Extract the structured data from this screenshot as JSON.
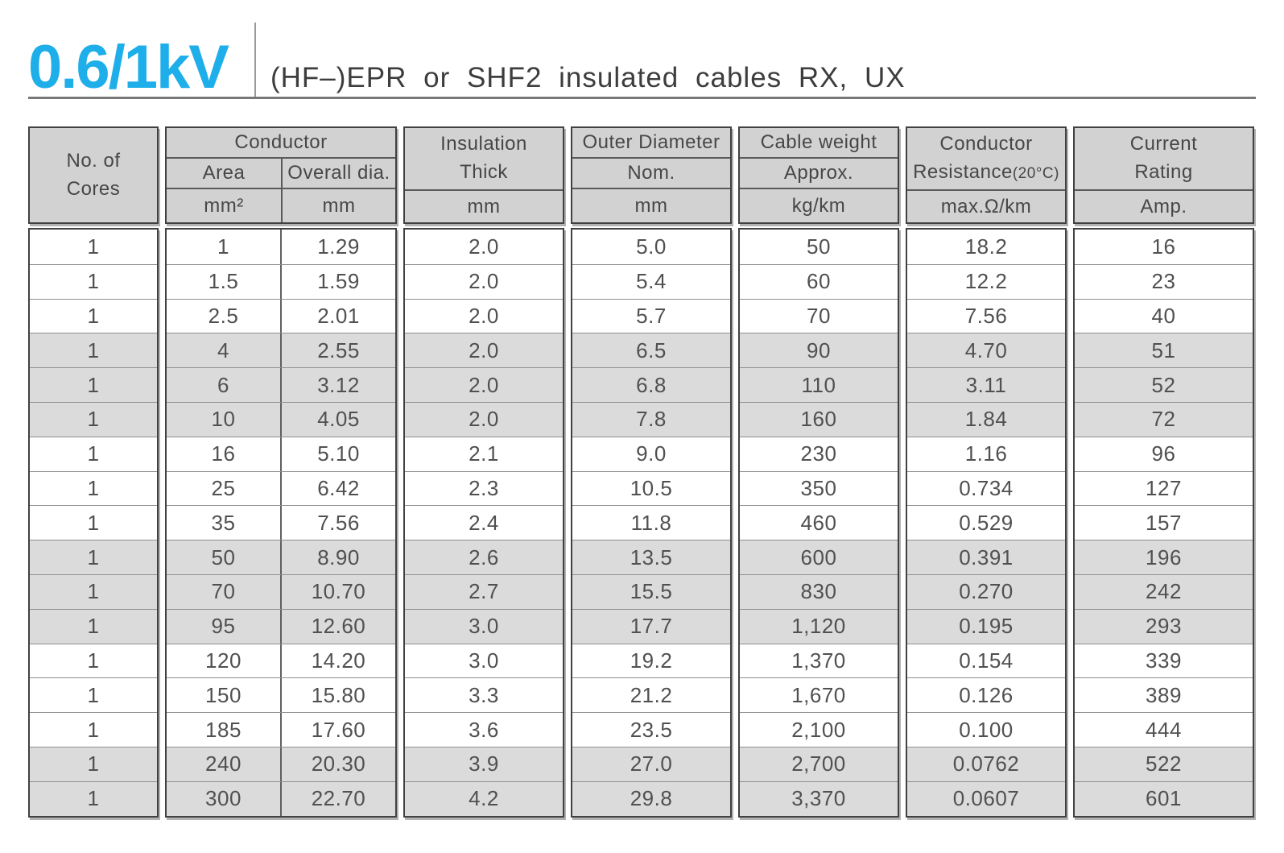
{
  "page": {
    "title": "0.6/1kV",
    "subtitle": "(HF–)EPR or SHF2 insulated cables RX, UX"
  },
  "colors": {
    "accent_blue": "#1eaee9",
    "header_fill": "#d2d2d2",
    "row_shaded_fill": "#dbdbdb",
    "border_dark": "#414141"
  },
  "table": {
    "cores": {
      "title": "No. of\nCores"
    },
    "conductor": {
      "title": "Conductor",
      "area_label": "Area",
      "dia_label": "Overall dia.",
      "area_unit": "mm²",
      "dia_unit": "mm"
    },
    "insulation": {
      "title": "Insulation\nThick",
      "unit": "mm"
    },
    "outer": {
      "title": "Outer Diameter",
      "sub": "Nom.",
      "unit": "mm"
    },
    "weight": {
      "title": "Cable weight",
      "sub": "Approx.",
      "unit": "kg/km"
    },
    "resistance": {
      "title_1": "Conductor",
      "title_2": "Resistance",
      "title_small": "(20°C)",
      "unit": "max.Ω/km"
    },
    "current": {
      "title": "Current\nRating",
      "unit": "Amp."
    },
    "rows": [
      {
        "cores": "1",
        "area": "1",
        "dia": "1.29",
        "ins": "2.0",
        "outer": "5.0",
        "weight": "50",
        "res": "18.2",
        "amp": "16",
        "shaded": false
      },
      {
        "cores": "1",
        "area": "1.5",
        "dia": "1.59",
        "ins": "2.0",
        "outer": "5.4",
        "weight": "60",
        "res": "12.2",
        "amp": "23",
        "shaded": false
      },
      {
        "cores": "1",
        "area": "2.5",
        "dia": "2.01",
        "ins": "2.0",
        "outer": "5.7",
        "weight": "70",
        "res": "7.56",
        "amp": "40",
        "shaded": false
      },
      {
        "cores": "1",
        "area": "4",
        "dia": "2.55",
        "ins": "2.0",
        "outer": "6.5",
        "weight": "90",
        "res": "4.70",
        "amp": "51",
        "shaded": true
      },
      {
        "cores": "1",
        "area": "6",
        "dia": "3.12",
        "ins": "2.0",
        "outer": "6.8",
        "weight": "110",
        "res": "3.11",
        "amp": "52",
        "shaded": true
      },
      {
        "cores": "1",
        "area": "10",
        "dia": "4.05",
        "ins": "2.0",
        "outer": "7.8",
        "weight": "160",
        "res": "1.84",
        "amp": "72",
        "shaded": true
      },
      {
        "cores": "1",
        "area": "16",
        "dia": "5.10",
        "ins": "2.1",
        "outer": "9.0",
        "weight": "230",
        "res": "1.16",
        "amp": "96",
        "shaded": false
      },
      {
        "cores": "1",
        "area": "25",
        "dia": "6.42",
        "ins": "2.3",
        "outer": "10.5",
        "weight": "350",
        "res": "0.734",
        "amp": "127",
        "shaded": false
      },
      {
        "cores": "1",
        "area": "35",
        "dia": "7.56",
        "ins": "2.4",
        "outer": "11.8",
        "weight": "460",
        "res": "0.529",
        "amp": "157",
        "shaded": false
      },
      {
        "cores": "1",
        "area": "50",
        "dia": "8.90",
        "ins": "2.6",
        "outer": "13.5",
        "weight": "600",
        "res": "0.391",
        "amp": "196",
        "shaded": true
      },
      {
        "cores": "1",
        "area": "70",
        "dia": "10.70",
        "ins": "2.7",
        "outer": "15.5",
        "weight": "830",
        "res": "0.270",
        "amp": "242",
        "shaded": true
      },
      {
        "cores": "1",
        "area": "95",
        "dia": "12.60",
        "ins": "3.0",
        "outer": "17.7",
        "weight": "1,120",
        "res": "0.195",
        "amp": "293",
        "shaded": true
      },
      {
        "cores": "1",
        "area": "120",
        "dia": "14.20",
        "ins": "3.0",
        "outer": "19.2",
        "weight": "1,370",
        "res": "0.154",
        "amp": "339",
        "shaded": false
      },
      {
        "cores": "1",
        "area": "150",
        "dia": "15.80",
        "ins": "3.3",
        "outer": "21.2",
        "weight": "1,670",
        "res": "0.126",
        "amp": "389",
        "shaded": false
      },
      {
        "cores": "1",
        "area": "185",
        "dia": "17.60",
        "ins": "3.6",
        "outer": "23.5",
        "weight": "2,100",
        "res": "0.100",
        "amp": "444",
        "shaded": false
      },
      {
        "cores": "1",
        "area": "240",
        "dia": "20.30",
        "ins": "3.9",
        "outer": "27.0",
        "weight": "2,700",
        "res": "0.0762",
        "amp": "522",
        "shaded": true
      },
      {
        "cores": "1",
        "area": "300",
        "dia": "22.70",
        "ins": "4.2",
        "outer": "29.8",
        "weight": "3,370",
        "res": "0.0607",
        "amp": "601",
        "shaded": true
      }
    ]
  }
}
